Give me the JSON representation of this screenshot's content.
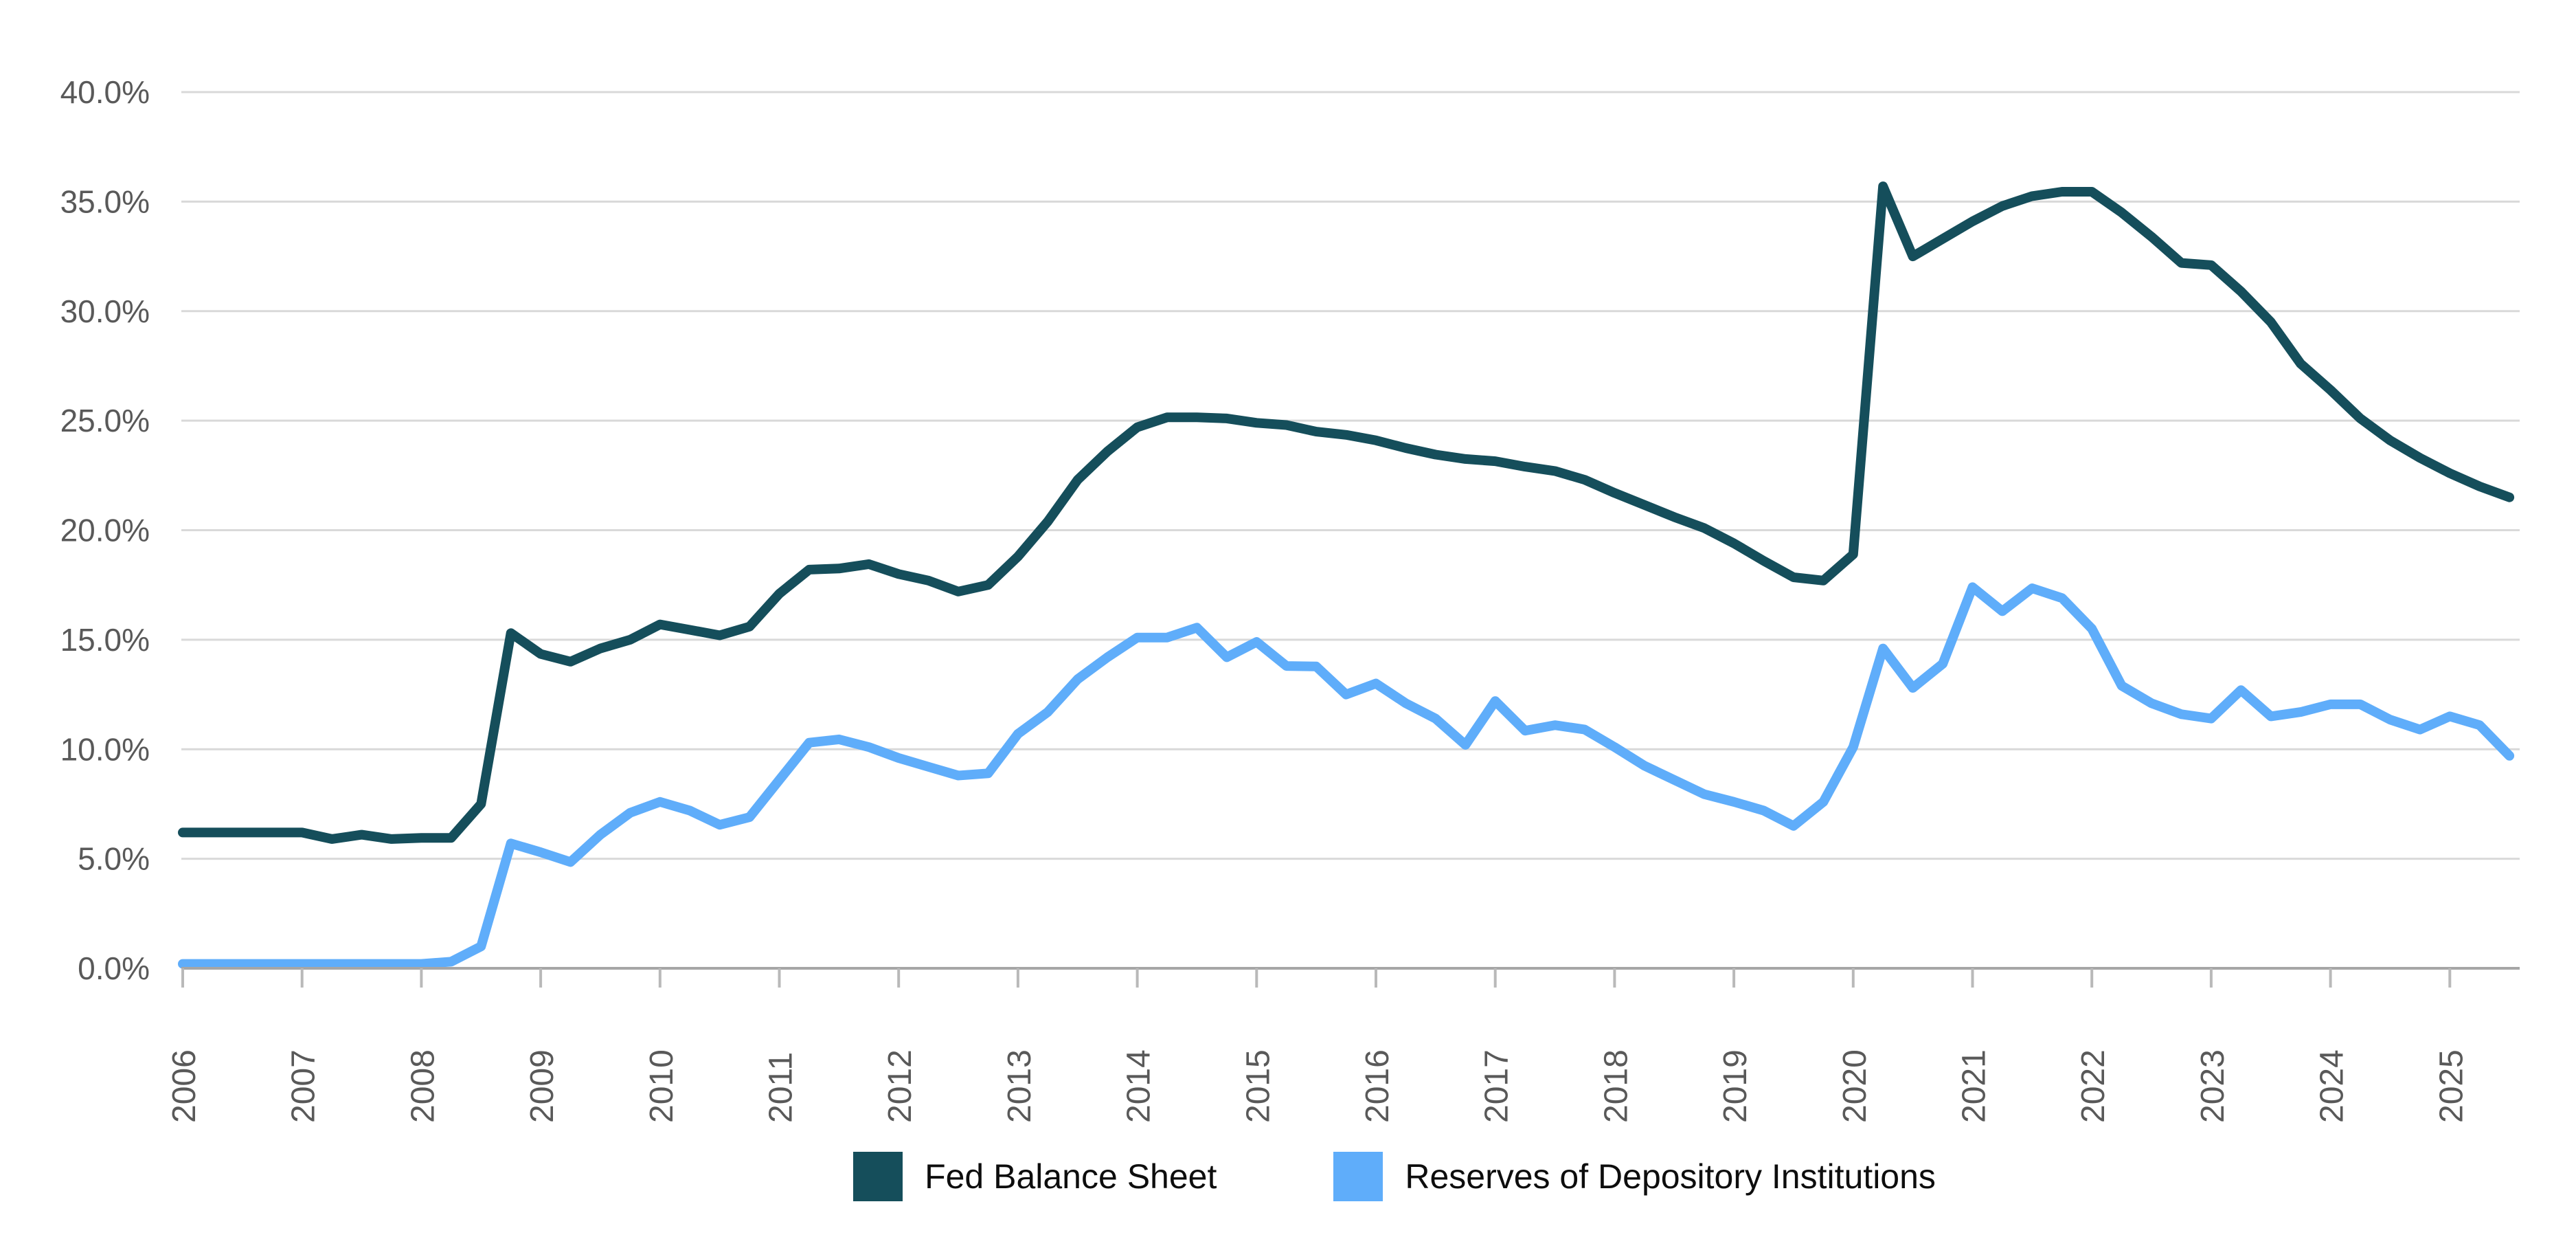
{
  "chart_data": {
    "type": "line",
    "title": "",
    "xlabel": "",
    "ylabel": "",
    "grid": "horizontal",
    "legend_position": "bottom-center",
    "x_start_year": 2006,
    "x_step_years": 0.25,
    "x_end_year": 2025.5,
    "x_tick_labels": [
      "2006",
      "2007",
      "2008",
      "2009",
      "2010",
      "2011",
      "2012",
      "2013",
      "2014",
      "2015",
      "2016",
      "2017",
      "2018",
      "2019",
      "2020",
      "2021",
      "2022",
      "2023",
      "2024",
      "2025"
    ],
    "y_axis": {
      "min": 0,
      "max": 40,
      "tick_step": 5,
      "tick_labels": [
        "0.0%",
        "5.0%",
        "10.0%",
        "15.0%",
        "20.0%",
        "25.0%",
        "30.0%",
        "35.0%",
        "40.0%"
      ]
    },
    "series": [
      {
        "name": "Fed Balance Sheet",
        "color": "#154e5b",
        "values": [
          6.2,
          6.2,
          6.2,
          6.2,
          6.2,
          5.9,
          6.1,
          5.9,
          5.95,
          5.95,
          7.5,
          15.3,
          14.35,
          14.0,
          14.6,
          15.0,
          15.7,
          15.45,
          15.2,
          15.6,
          17.1,
          18.2,
          18.25,
          18.45,
          18.0,
          17.7,
          17.2,
          17.5,
          18.8,
          20.4,
          22.3,
          23.6,
          24.7,
          25.15,
          25.15,
          25.1,
          24.9,
          24.8,
          24.5,
          24.35,
          24.1,
          23.75,
          23.45,
          23.25,
          23.15,
          22.9,
          22.7,
          22.3,
          21.7,
          21.15,
          20.6,
          20.1,
          19.4,
          18.6,
          17.85,
          17.7,
          18.9,
          35.7,
          32.5,
          33.3,
          34.1,
          34.8,
          35.25,
          35.45,
          35.45,
          34.5,
          33.4,
          32.2,
          32.1,
          30.9,
          29.5,
          27.6,
          26.4,
          25.1,
          24.1,
          23.3,
          22.6,
          22.0,
          21.5
        ]
      },
      {
        "name": "Reserves of Depository Institutions",
        "color": "#5fadfa",
        "values": [
          0.2,
          0.2,
          0.2,
          0.2,
          0.2,
          0.2,
          0.2,
          0.2,
          0.2,
          0.3,
          1.0,
          5.7,
          5.3,
          4.85,
          6.1,
          7.1,
          7.6,
          7.2,
          6.55,
          6.9,
          8.6,
          10.3,
          10.45,
          10.1,
          9.6,
          9.2,
          8.8,
          8.9,
          10.7,
          11.7,
          13.2,
          14.2,
          15.1,
          15.1,
          15.55,
          14.2,
          14.9,
          13.8,
          13.78,
          12.5,
          13.0,
          12.1,
          11.4,
          10.2,
          12.2,
          10.85,
          11.1,
          10.9,
          10.1,
          9.25,
          8.6,
          7.95,
          7.6,
          7.2,
          6.5,
          7.6,
          10.1,
          14.6,
          12.8,
          13.9,
          17.4,
          16.3,
          17.35,
          16.9,
          15.5,
          12.9,
          12.1,
          11.6,
          11.4,
          12.7,
          11.5,
          11.7,
          12.05,
          12.05,
          11.35,
          10.9,
          11.5,
          11.1,
          9.7
        ]
      }
    ]
  },
  "legend": {
    "items": [
      {
        "label": "Fed Balance Sheet",
        "swatch_color": "#154e5b"
      },
      {
        "label": "Reserves of Depository Institutions",
        "swatch_color": "#5fadfa"
      }
    ]
  },
  "colors": {
    "background": "#ffffff",
    "gridline": "#d9d9d9",
    "axis_line": "#a6a6a6",
    "tick": "#b9b9b9",
    "axis_label_text": "#595959",
    "legend_text": "#0d0d0d",
    "series_fed": "#154e5b",
    "series_reserves": "#5fadfa"
  }
}
